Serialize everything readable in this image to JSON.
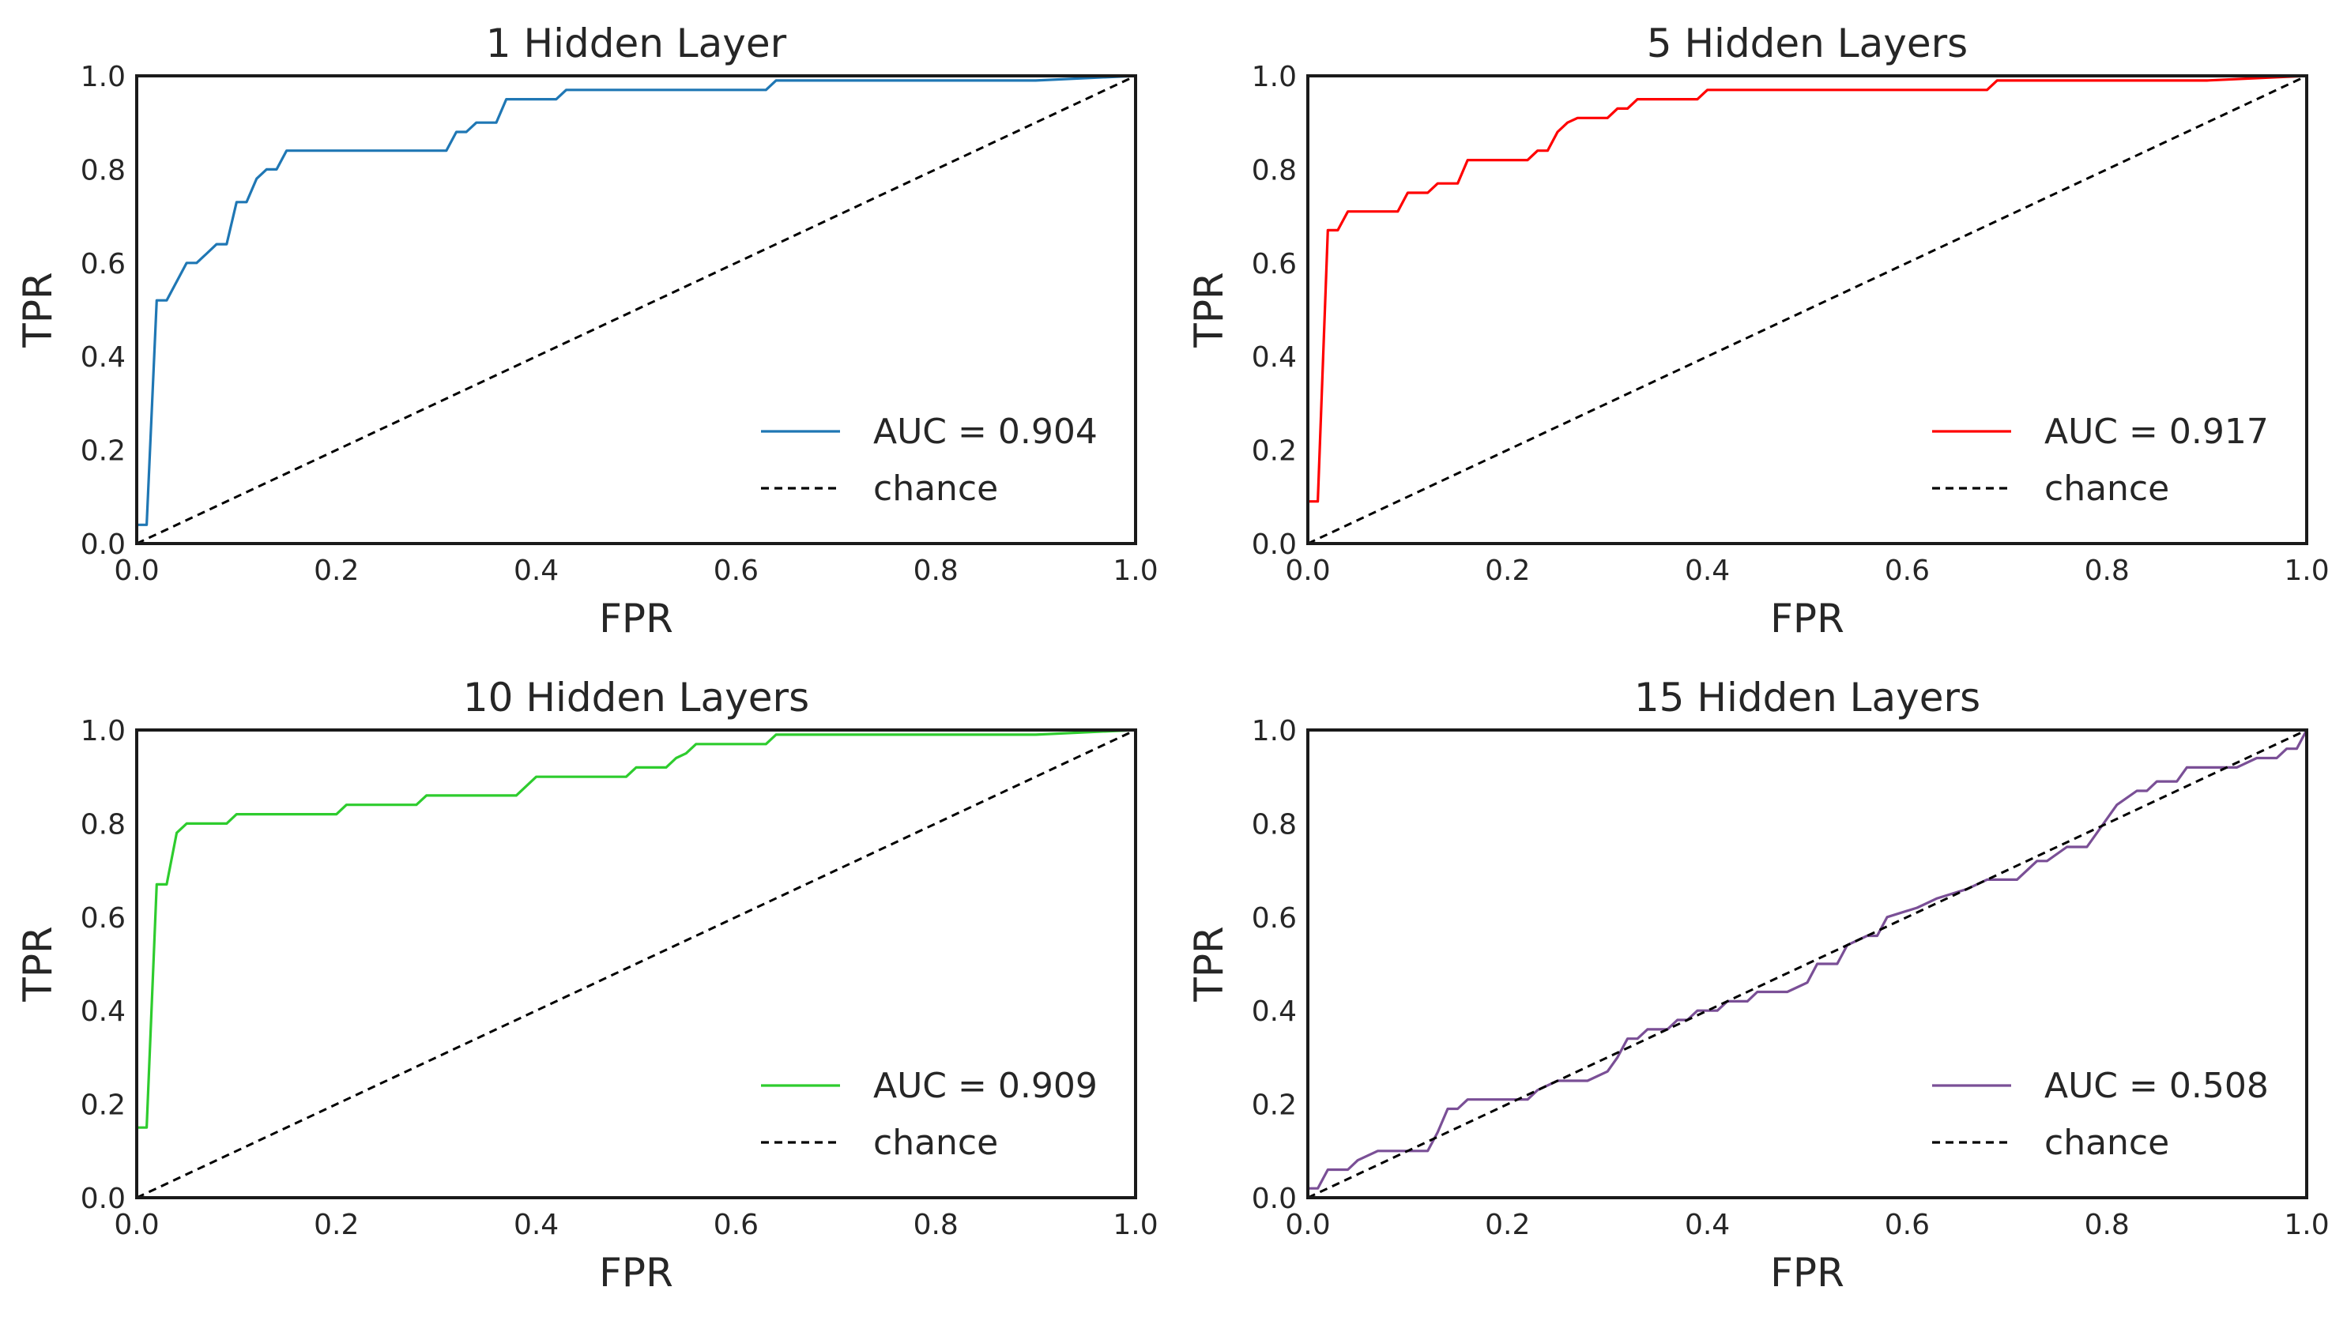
{
  "chart_data": [
    {
      "type": "line",
      "title": "1 Hidden Layer",
      "xlabel": "FPR",
      "ylabel": "TPR",
      "xlim": [
        0,
        1
      ],
      "ylim": [
        0,
        1
      ],
      "xticks": [
        "0.0",
        "0.2",
        "0.4",
        "0.6",
        "0.8",
        "1.0"
      ],
      "yticks": [
        "0.0",
        "0.2",
        "0.4",
        "0.6",
        "0.8",
        "1.0"
      ],
      "grid": false,
      "legend_position": "lower-right",
      "series": [
        {
          "name": "AUC = 0.904",
          "color": "#1f77b4",
          "style": "solid",
          "x": [
            0.0,
            0.01,
            0.02,
            0.03,
            0.05,
            0.06,
            0.07,
            0.08,
            0.09,
            0.1,
            0.11,
            0.12,
            0.13,
            0.14,
            0.15,
            0.2,
            0.25,
            0.31,
            0.32,
            0.33,
            0.34,
            0.36,
            0.37,
            0.42,
            0.43,
            0.5,
            0.55,
            0.63,
            0.64,
            0.7,
            0.8,
            0.9,
            1.0
          ],
          "y": [
            0.04,
            0.04,
            0.52,
            0.52,
            0.6,
            0.6,
            0.62,
            0.64,
            0.64,
            0.73,
            0.73,
            0.78,
            0.8,
            0.8,
            0.84,
            0.84,
            0.84,
            0.84,
            0.88,
            0.88,
            0.9,
            0.9,
            0.95,
            0.95,
            0.97,
            0.97,
            0.97,
            0.97,
            0.99,
            0.99,
            0.99,
            0.99,
            1.0
          ]
        },
        {
          "name": "chance",
          "color": "#000000",
          "style": "dashed",
          "x": [
            0,
            1
          ],
          "y": [
            0,
            1
          ]
        }
      ]
    },
    {
      "type": "line",
      "title": "5 Hidden Layers",
      "xlabel": "FPR",
      "ylabel": "TPR",
      "xlim": [
        0,
        1
      ],
      "ylim": [
        0,
        1
      ],
      "xticks": [
        "0.0",
        "0.2",
        "0.4",
        "0.6",
        "0.8",
        "1.0"
      ],
      "yticks": [
        "0.0",
        "0.2",
        "0.4",
        "0.6",
        "0.8",
        "1.0"
      ],
      "grid": false,
      "legend_position": "lower-right",
      "series": [
        {
          "name": "AUC = 0.917",
          "color": "#ff0000",
          "style": "solid",
          "x": [
            0.0,
            0.01,
            0.02,
            0.03,
            0.04,
            0.09,
            0.1,
            0.12,
            0.13,
            0.15,
            0.16,
            0.22,
            0.23,
            0.24,
            0.25,
            0.26,
            0.27,
            0.3,
            0.31,
            0.32,
            0.33,
            0.34,
            0.39,
            0.4,
            0.5,
            0.6,
            0.68,
            0.69,
            0.8,
            0.9,
            1.0
          ],
          "y": [
            0.09,
            0.09,
            0.67,
            0.67,
            0.71,
            0.71,
            0.75,
            0.75,
            0.77,
            0.77,
            0.82,
            0.82,
            0.84,
            0.84,
            0.88,
            0.9,
            0.91,
            0.91,
            0.93,
            0.93,
            0.95,
            0.95,
            0.95,
            0.97,
            0.97,
            0.97,
            0.97,
            0.99,
            0.99,
            0.99,
            1.0
          ]
        },
        {
          "name": "chance",
          "color": "#000000",
          "style": "dashed",
          "x": [
            0,
            1
          ],
          "y": [
            0,
            1
          ]
        }
      ]
    },
    {
      "type": "line",
      "title": "10 Hidden Layers",
      "xlabel": "FPR",
      "ylabel": "TPR",
      "xlim": [
        0,
        1
      ],
      "ylim": [
        0,
        1
      ],
      "xticks": [
        "0.0",
        "0.2",
        "0.4",
        "0.6",
        "0.8",
        "1.0"
      ],
      "yticks": [
        "0.0",
        "0.2",
        "0.4",
        "0.6",
        "0.8",
        "1.0"
      ],
      "grid": false,
      "legend_position": "lower-right",
      "series": [
        {
          "name": "AUC = 0.909",
          "color": "#2ecc2e",
          "style": "solid",
          "x": [
            0.0,
            0.01,
            0.02,
            0.03,
            0.04,
            0.05,
            0.09,
            0.1,
            0.2,
            0.21,
            0.28,
            0.29,
            0.38,
            0.4,
            0.49,
            0.5,
            0.53,
            0.54,
            0.55,
            0.56,
            0.57,
            0.63,
            0.64,
            0.7,
            0.8,
            0.9,
            1.0
          ],
          "y": [
            0.15,
            0.15,
            0.67,
            0.67,
            0.78,
            0.8,
            0.8,
            0.82,
            0.82,
            0.84,
            0.84,
            0.86,
            0.86,
            0.9,
            0.9,
            0.92,
            0.92,
            0.94,
            0.95,
            0.97,
            0.97,
            0.97,
            0.99,
            0.99,
            0.99,
            0.99,
            1.0
          ]
        },
        {
          "name": "chance",
          "color": "#000000",
          "style": "dashed",
          "x": [
            0,
            1
          ],
          "y": [
            0,
            1
          ]
        }
      ]
    },
    {
      "type": "line",
      "title": "15 Hidden Layers",
      "xlabel": "FPR",
      "ylabel": "TPR",
      "xlim": [
        0,
        1
      ],
      "ylim": [
        0,
        1
      ],
      "xticks": [
        "0.0",
        "0.2",
        "0.4",
        "0.6",
        "0.8",
        "1.0"
      ],
      "yticks": [
        "0.0",
        "0.2",
        "0.4",
        "0.6",
        "0.8",
        "1.0"
      ],
      "grid": false,
      "legend_position": "lower-right",
      "series": [
        {
          "name": "AUC = 0.508",
          "color": "#7a4f96",
          "style": "solid",
          "x": [
            0.0,
            0.01,
            0.02,
            0.04,
            0.05,
            0.07,
            0.12,
            0.13,
            0.14,
            0.15,
            0.16,
            0.22,
            0.23,
            0.25,
            0.28,
            0.3,
            0.31,
            0.32,
            0.33,
            0.34,
            0.36,
            0.37,
            0.38,
            0.39,
            0.41,
            0.42,
            0.44,
            0.45,
            0.48,
            0.5,
            0.51,
            0.53,
            0.54,
            0.56,
            0.57,
            0.58,
            0.61,
            0.63,
            0.66,
            0.68,
            0.71,
            0.73,
            0.74,
            0.76,
            0.78,
            0.81,
            0.83,
            0.84,
            0.85,
            0.87,
            0.88,
            0.9,
            0.93,
            0.95,
            0.97,
            0.98,
            0.99,
            1.0
          ],
          "y": [
            0.02,
            0.02,
            0.06,
            0.06,
            0.08,
            0.1,
            0.1,
            0.14,
            0.19,
            0.19,
            0.21,
            0.21,
            0.23,
            0.25,
            0.25,
            0.27,
            0.3,
            0.34,
            0.34,
            0.36,
            0.36,
            0.38,
            0.38,
            0.4,
            0.4,
            0.42,
            0.42,
            0.44,
            0.44,
            0.46,
            0.5,
            0.5,
            0.54,
            0.56,
            0.56,
            0.6,
            0.62,
            0.64,
            0.66,
            0.68,
            0.68,
            0.72,
            0.72,
            0.75,
            0.75,
            0.84,
            0.87,
            0.87,
            0.89,
            0.89,
            0.92,
            0.92,
            0.92,
            0.94,
            0.94,
            0.96,
            0.96,
            1.0
          ]
        },
        {
          "name": "chance",
          "color": "#000000",
          "style": "dashed",
          "x": [
            0,
            1
          ],
          "y": [
            0,
            1
          ]
        }
      ]
    }
  ]
}
